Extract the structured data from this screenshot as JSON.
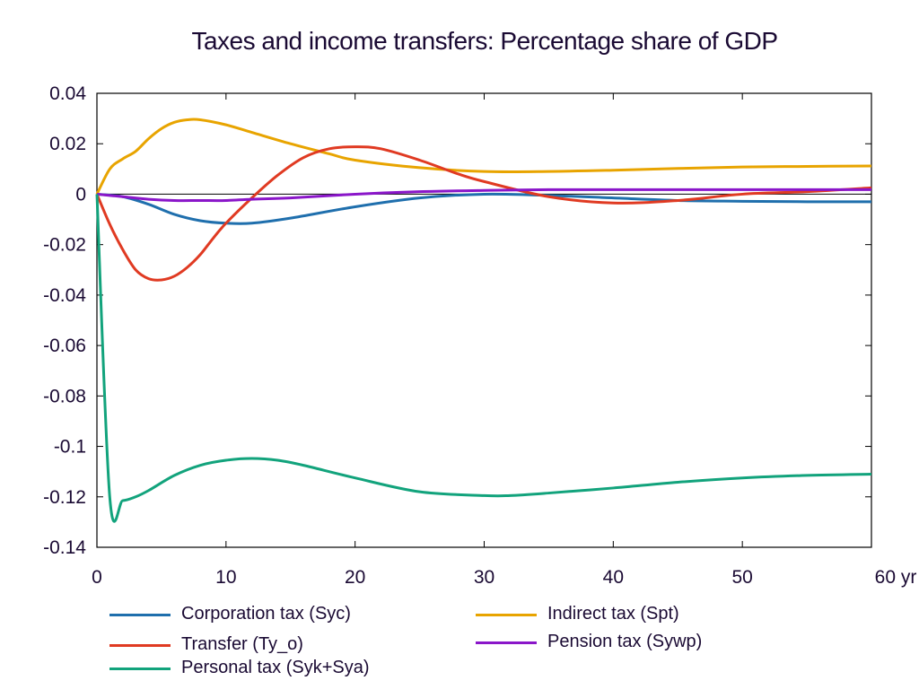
{
  "chart_data": {
    "type": "line",
    "title": "Taxes and income transfers: Percentage share of GDP",
    "xlim": [
      0,
      60
    ],
    "ylim": [
      -0.14,
      0.04
    ],
    "x_ticks": [
      "0",
      "10",
      "20",
      "30",
      "40",
      "50",
      "60 yr"
    ],
    "x_tick_values": [
      0,
      10,
      20,
      30,
      40,
      50,
      60
    ],
    "y_ticks": [
      "0.04",
      "0.02",
      "0",
      "-0.02",
      "-0.04",
      "-0.06",
      "-0.08",
      "-0.1",
      "-0.12",
      "-0.14"
    ],
    "y_tick_values": [
      0.04,
      0.02,
      0,
      -0.02,
      -0.04,
      -0.06,
      -0.08,
      -0.1,
      -0.12,
      -0.14
    ],
    "grid": false,
    "zero_line": true,
    "legend_position": "bottom",
    "series": [
      {
        "name": "Corporation tax (Syc)",
        "color": "#1f6fad",
        "x": [
          0,
          2,
          4,
          6,
          8,
          10,
          12,
          15,
          20,
          25,
          30,
          35,
          40,
          45,
          50,
          55,
          60
        ],
        "values": [
          0,
          -0.001,
          -0.004,
          -0.008,
          -0.0105,
          -0.0115,
          -0.0115,
          -0.0095,
          -0.005,
          -0.0015,
          0,
          -0.0005,
          -0.0015,
          -0.0025,
          -0.0028,
          -0.003,
          -0.003
        ]
      },
      {
        "name": "Indirect tax (Spt)",
        "color": "#e8a400",
        "x": [
          0,
          1,
          2,
          3,
          4,
          5,
          6,
          7,
          8,
          10,
          12,
          15,
          18,
          20,
          25,
          30,
          35,
          40,
          45,
          50,
          55,
          60
        ],
        "values": [
          0,
          0.01,
          0.014,
          0.017,
          0.022,
          0.026,
          0.0285,
          0.0295,
          0.0295,
          0.0275,
          0.0245,
          0.02,
          0.016,
          0.0135,
          0.0105,
          0.009,
          0.009,
          0.0095,
          0.0102,
          0.0108,
          0.011,
          0.0112
        ]
      },
      {
        "name": "Transfer (Ty_o)",
        "color": "#e03a22",
        "x": [
          0,
          1,
          2,
          3,
          4,
          5,
          6,
          7,
          8,
          9,
          10,
          12,
          14,
          16,
          18,
          20,
          22,
          25,
          28,
          30,
          35,
          40,
          45,
          50,
          55,
          60
        ],
        "values": [
          0,
          -0.012,
          -0.022,
          -0.03,
          -0.0335,
          -0.034,
          -0.0325,
          -0.029,
          -0.024,
          -0.0175,
          -0.0115,
          -0.0015,
          0.0075,
          0.0145,
          0.018,
          0.0188,
          0.018,
          0.0135,
          0.008,
          0.005,
          -0.001,
          -0.0035,
          -0.0025,
          0,
          0.001,
          0.0025
        ]
      },
      {
        "name": "Pension tax (Sywp)",
        "color": "#8a16c9",
        "x": [
          0,
          2,
          4,
          6,
          8,
          10,
          12,
          15,
          20,
          25,
          30,
          35,
          40,
          45,
          50,
          55,
          60
        ],
        "values": [
          0,
          -0.001,
          -0.002,
          -0.0025,
          -0.0025,
          -0.0025,
          -0.002,
          -0.0015,
          0,
          0.001,
          0.0015,
          0.0018,
          0.0018,
          0.0018,
          0.0018,
          0.0018,
          0.0018
        ]
      },
      {
        "name": "Personal tax (Syk+Sya)",
        "color": "#12a37c",
        "x": [
          0,
          1,
          2,
          3,
          4,
          6,
          8,
          10,
          12,
          14,
          16,
          20,
          25,
          30,
          32,
          35,
          40,
          45,
          50,
          55,
          60
        ],
        "values": [
          0,
          -0.1205,
          -0.1215,
          -0.12,
          -0.1175,
          -0.1115,
          -0.1075,
          -0.1055,
          -0.1048,
          -0.1055,
          -0.1075,
          -0.1125,
          -0.118,
          -0.1195,
          -0.1195,
          -0.1185,
          -0.1165,
          -0.1142,
          -0.1125,
          -0.1115,
          -0.111
        ]
      }
    ]
  },
  "legend": {
    "items": [
      {
        "label": "Corporation tax (Syc)",
        "color": "#1f6fad"
      },
      {
        "label": "Indirect tax (Spt)",
        "color": "#e8a400"
      },
      {
        "label": "Transfer (Ty_o)",
        "color": "#e03a22"
      },
      {
        "label": "Pension tax (Sywp)",
        "color": "#8a16c9"
      },
      {
        "label": "Personal tax (Syk+Sya)",
        "color": "#12a37c"
      }
    ]
  }
}
